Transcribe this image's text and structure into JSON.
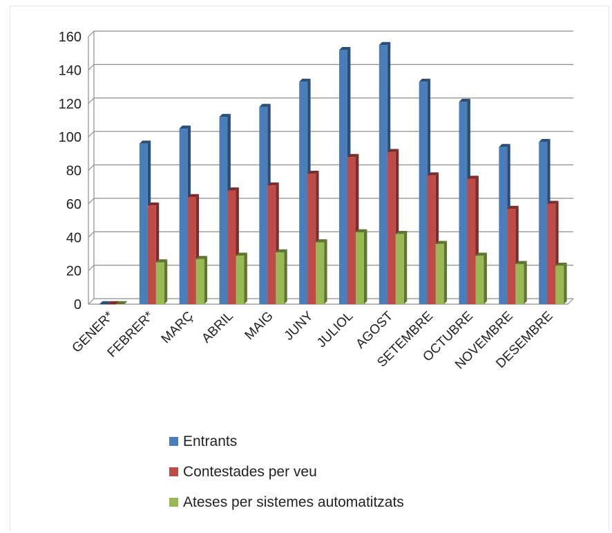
{
  "chart_data": {
    "type": "bar",
    "categories": [
      "GENER*",
      "FEBRER*",
      "MARÇ",
      "ABRIL",
      "MAIG",
      "JUNY",
      "JULIOL",
      "AGOST",
      "SETEMBRE",
      "OCTUBRE",
      "NOVEMBRE",
      "DESEMBRE"
    ],
    "series": [
      {
        "name": "Entrants",
        "values": [
          0,
          96,
          105,
          112,
          118,
          133,
          152,
          155,
          133,
          121,
          94,
          97
        ]
      },
      {
        "name": "Contestades per veu",
        "values": [
          0,
          59,
          64,
          68,
          71,
          78,
          88,
          91,
          77,
          75,
          57,
          60
        ]
      },
      {
        "name": "Ateses per sistemes automatitzats",
        "values": [
          0,
          25,
          27,
          29,
          31,
          37,
          43,
          42,
          36,
          29,
          24,
          23
        ]
      }
    ],
    "ylim": [
      0,
      160
    ],
    "yticks": [
      0,
      20,
      40,
      60,
      80,
      100,
      120,
      140,
      160
    ],
    "title": "",
    "xlabel": "",
    "ylabel": "",
    "grid": true,
    "legend_position": "bottom",
    "colors": [
      "#4a7ebb",
      "#be4b48",
      "#98b954"
    ],
    "side_colors": [
      "#2c4d74",
      "#7a2e2c",
      "#5f7632"
    ]
  }
}
